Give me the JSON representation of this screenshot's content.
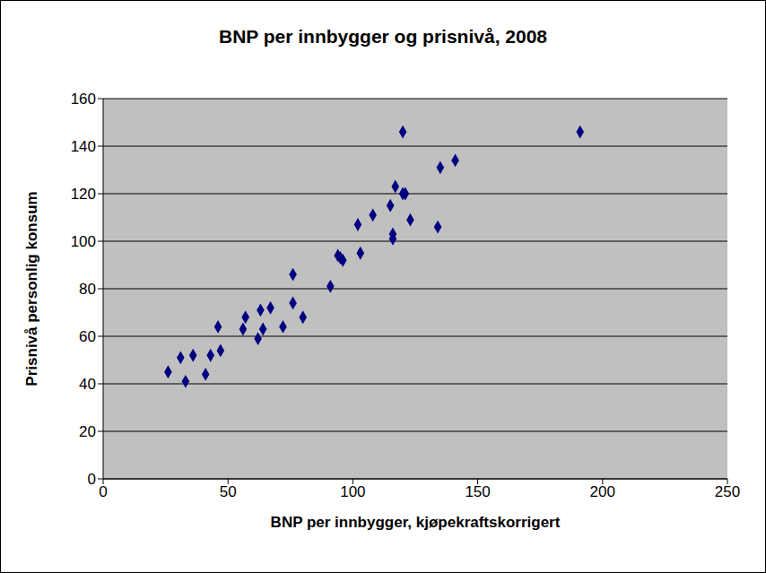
{
  "chart_data": {
    "type": "scatter",
    "title": "BNP per innbygger og prisnivå, 2008",
    "x_label": "BNP per innbygger, kjøpekraftskorrigert",
    "y_label": "Prisnivå personlig konsum",
    "x": [
      26,
      31,
      33,
      36,
      41,
      43,
      46,
      47,
      56,
      57,
      62,
      63,
      64,
      67,
      72,
      76,
      76,
      80,
      91,
      94,
      95,
      96,
      102,
      103,
      108,
      115,
      116,
      116,
      117,
      120,
      121,
      123,
      120,
      134,
      135,
      141,
      191
    ],
    "values": [
      45,
      51,
      41,
      52,
      44,
      52,
      64,
      54,
      63,
      68,
      59,
      71,
      63,
      72,
      64,
      86,
      74,
      68,
      81,
      94,
      93,
      92,
      107,
      95,
      111,
      115,
      103,
      101,
      123,
      120,
      120,
      109,
      146,
      106,
      131,
      134,
      146
    ],
    "color": "#000080",
    "marker": "diamond",
    "xlim": [
      0,
      250
    ],
    "xticks": [
      0,
      50,
      100,
      150,
      200,
      250
    ],
    "ylim": [
      0,
      160
    ],
    "yticks": [
      0,
      20,
      40,
      60,
      80,
      100,
      120,
      140,
      160
    ],
    "grid": true
  }
}
